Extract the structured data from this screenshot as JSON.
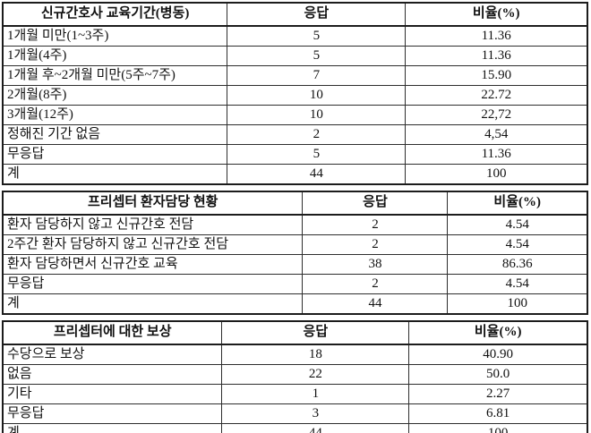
{
  "page": {
    "kind": "survey-result-tables",
    "text_color": "#111111",
    "border_color": "#1c1c1c",
    "background_color": "#ffffff"
  },
  "tables": [
    {
      "id": "new-nurse-education-period",
      "headers": [
        "신규간호사 교육기간(병동)",
        "응답",
        "비율(%)"
      ],
      "rows": [
        [
          "1개월 미만(1~3주)",
          "5",
          "11.36"
        ],
        [
          "1개월(4주)",
          "5",
          "11.36"
        ],
        [
          "1개월 후~2개월 미만(5주~7주)",
          "7",
          "15.90"
        ],
        [
          "2개월(8주)",
          "10",
          "22.72"
        ],
        [
          "3개월(12주)",
          "10",
          "22,72"
        ],
        [
          "정해진 기간 없음",
          "2",
          "4,54"
        ],
        [
          "무응답",
          "5",
          "11.36"
        ],
        [
          "계",
          "44",
          "100"
        ]
      ]
    },
    {
      "id": "preceptor-patient-assignment",
      "headers": [
        "프리셉터 환자담당 현황",
        "응답",
        "비율(%)"
      ],
      "rows": [
        [
          "환자 담당하지 않고 신규간호 전담",
          "2",
          "4.54"
        ],
        [
          "2주간 환자 담당하지 않고 신규간호 전담",
          "2",
          "4.54"
        ],
        [
          "환자 담당하면서 신규간호 교육",
          "38",
          "86.36"
        ],
        [
          "무응답",
          "2",
          "4.54"
        ],
        [
          "계",
          "44",
          "100"
        ]
      ]
    },
    {
      "id": "preceptor-compensation",
      "headers": [
        "프리셉터에 대한 보상",
        "응답",
        "비율(%)"
      ],
      "rows": [
        [
          "수당으로 보상",
          "18",
          "40.90"
        ],
        [
          "없음",
          "22",
          "50.0"
        ],
        [
          "기타",
          "1",
          "2.27"
        ],
        [
          "무응답",
          "3",
          "6.81"
        ],
        [
          "계",
          "44",
          "100"
        ]
      ]
    }
  ]
}
